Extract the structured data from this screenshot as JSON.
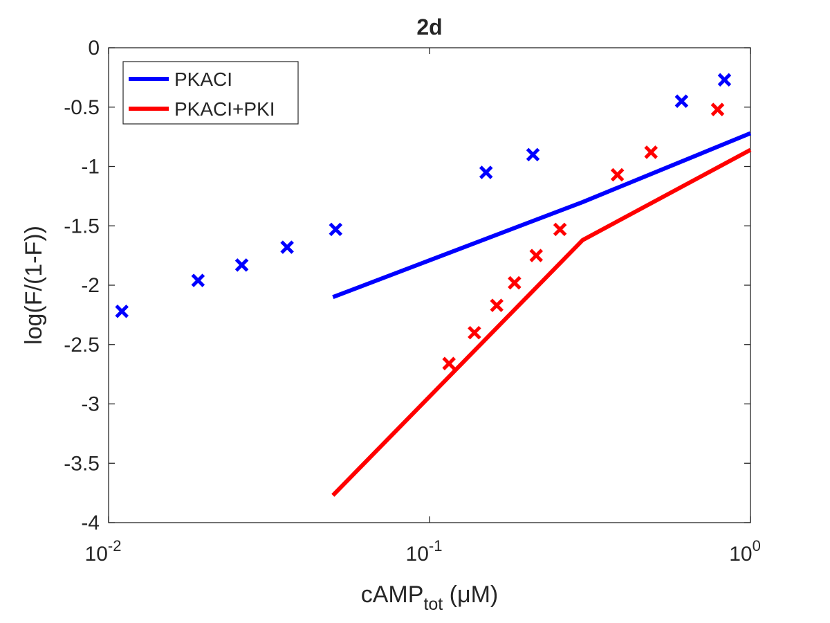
{
  "chart_data": {
    "type": "line",
    "title": "2d",
    "xlabel": {
      "main": "cAMP",
      "sub": "tot",
      "unit": " (μM)"
    },
    "ylabel": "log(F/(1-F))",
    "xscale": "log",
    "xlim": [
      0.01,
      1
    ],
    "ylim": [
      -4,
      0
    ],
    "xticks": [
      {
        "value": 0.01,
        "base": "10",
        "exp": "-2"
      },
      {
        "value": 0.1,
        "base": "10",
        "exp": "-1"
      },
      {
        "value": 1,
        "base": "10",
        "exp": "0"
      }
    ],
    "yticks": [
      {
        "value": 0,
        "label": "0"
      },
      {
        "value": -0.5,
        "label": "-0.5"
      },
      {
        "value": -1,
        "label": "-1"
      },
      {
        "value": -1.5,
        "label": "-1.5"
      },
      {
        "value": -2,
        "label": "-2"
      },
      {
        "value": -2.5,
        "label": "-2.5"
      },
      {
        "value": -3,
        "label": "-3"
      },
      {
        "value": -3.5,
        "label": "-3.5"
      },
      {
        "value": -4,
        "label": "-4"
      }
    ],
    "grid": false,
    "legend_position": "top-left",
    "series": [
      {
        "name": "PKACI",
        "color": "#0000ff",
        "line": {
          "x": [
            0.05,
            0.3,
            1
          ],
          "y": [
            -2.1,
            -1.3,
            -0.72
          ]
        },
        "markers": {
          "x": [
            0.011,
            0.019,
            0.026,
            0.036,
            0.051,
            0.15,
            0.21,
            0.61,
            0.83
          ],
          "y": [
            -2.22,
            -1.96,
            -1.83,
            -1.68,
            -1.53,
            -1.05,
            -0.9,
            -0.45,
            -0.27
          ]
        }
      },
      {
        "name": "PKACI+PKI",
        "color": "#ff0000",
        "line": {
          "x": [
            0.05,
            0.3,
            1
          ],
          "y": [
            -3.77,
            -1.62,
            -0.86
          ]
        },
        "markers": {
          "x": [
            0.115,
            0.138,
            0.162,
            0.184,
            0.215,
            0.255,
            0.385,
            0.49,
            0.79
          ],
          "y": [
            -2.66,
            -2.4,
            -2.17,
            -1.98,
            -1.75,
            -1.53,
            -1.07,
            -0.88,
            -0.52
          ]
        }
      }
    ]
  }
}
